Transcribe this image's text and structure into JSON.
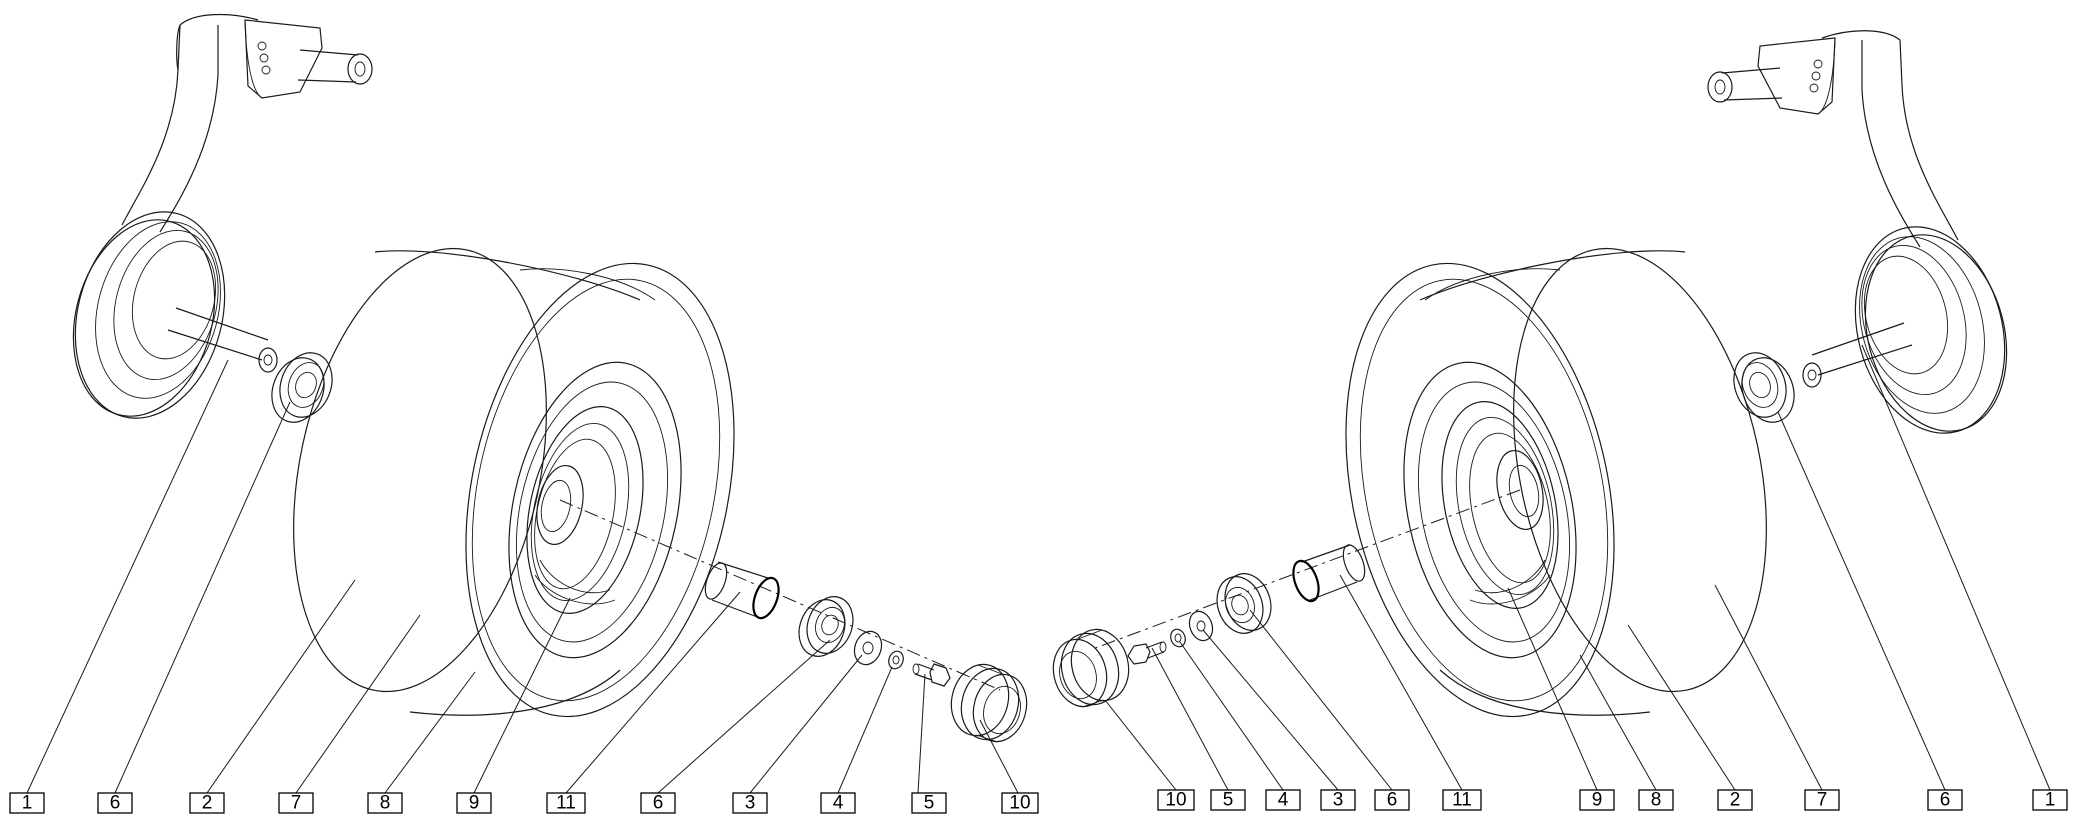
{
  "callouts": [
    {
      "id": "left-1",
      "label": "1"
    },
    {
      "id": "left-6a",
      "label": "6"
    },
    {
      "id": "left-2",
      "label": "2"
    },
    {
      "id": "left-7",
      "label": "7"
    },
    {
      "id": "left-8",
      "label": "8"
    },
    {
      "id": "left-9",
      "label": "9"
    },
    {
      "id": "left-11",
      "label": "11"
    },
    {
      "id": "left-6b",
      "label": "6"
    },
    {
      "id": "left-3",
      "label": "3"
    },
    {
      "id": "left-4",
      "label": "4"
    },
    {
      "id": "left-5",
      "label": "5"
    },
    {
      "id": "left-10",
      "label": "10"
    },
    {
      "id": "right-10",
      "label": "10"
    },
    {
      "id": "right-5",
      "label": "5"
    },
    {
      "id": "right-4",
      "label": "4"
    },
    {
      "id": "right-3",
      "label": "3"
    },
    {
      "id": "right-6b",
      "label": "6"
    },
    {
      "id": "right-11",
      "label": "11"
    },
    {
      "id": "right-9",
      "label": "9"
    },
    {
      "id": "right-8",
      "label": "8"
    },
    {
      "id": "right-2",
      "label": "2"
    },
    {
      "id": "right-7",
      "label": "7"
    },
    {
      "id": "right-6a",
      "label": "6"
    },
    {
      "id": "right-1",
      "label": "1"
    }
  ]
}
